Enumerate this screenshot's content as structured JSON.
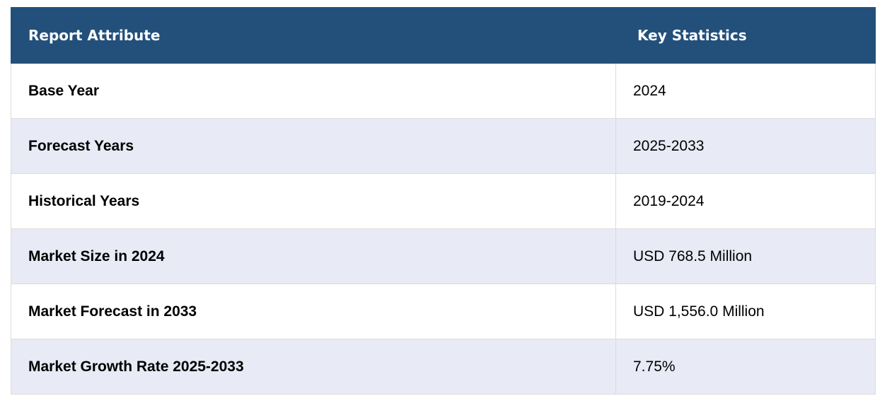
{
  "table": {
    "headers": {
      "attribute": "Report Attribute",
      "statistics": "Key Statistics"
    },
    "rows": [
      {
        "attribute": "Base Year",
        "value": "2024"
      },
      {
        "attribute": "Forecast Years",
        "value": "2025-2033"
      },
      {
        "attribute": "Historical Years",
        "value": "2019-2024"
      },
      {
        "attribute": "Market Size in 2024",
        "value": "USD 768.5 Million"
      },
      {
        "attribute": "Market Forecast in 2033",
        "value": "USD 1,556.0 Million"
      },
      {
        "attribute": "Market Growth Rate 2025-2033",
        "value": "7.75%"
      }
    ]
  },
  "colors": {
    "header_background": "#22507b",
    "header_text": "#ffffff",
    "alt_row_background": "#e8eaf5",
    "row_background": "#ffffff"
  }
}
